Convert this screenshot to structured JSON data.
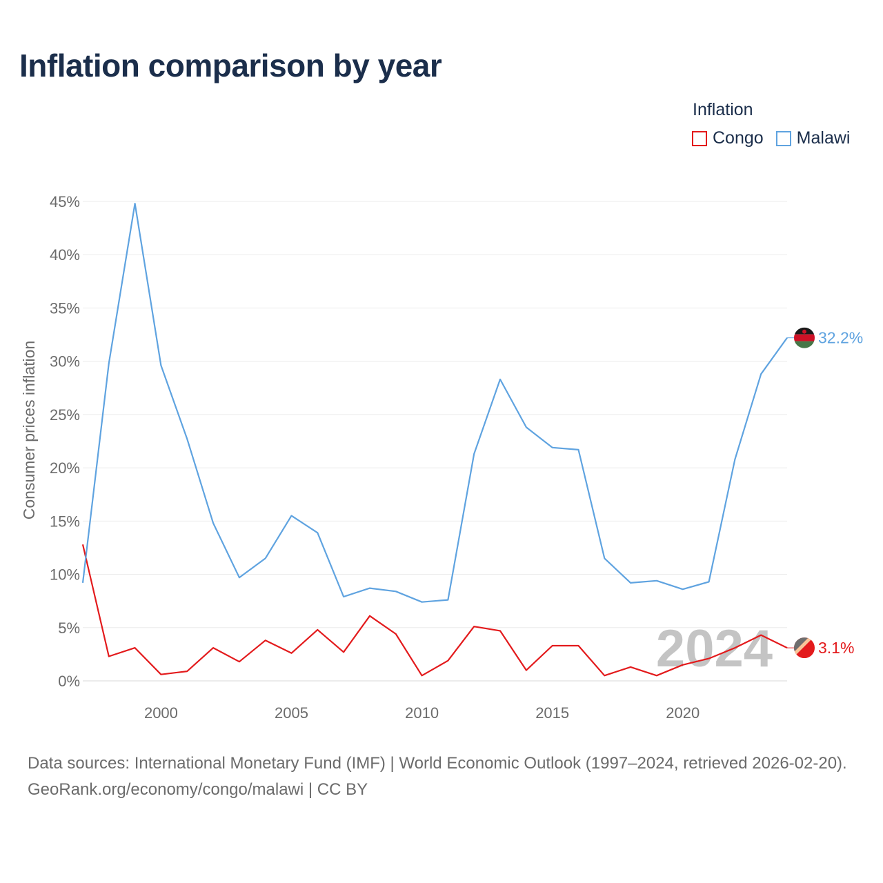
{
  "title": "Inflation comparison by year",
  "legend": {
    "title": "Inflation",
    "items": [
      {
        "name": "Congo",
        "color": "#e31a1c"
      },
      {
        "name": "Malawi",
        "color": "#5fa3e0"
      }
    ]
  },
  "year_watermark": "2024",
  "source": {
    "line1": "Data sources: International Monetary Fund (IMF) | World Economic Outlook (1997–2024, retrieved 2026-02-20).",
    "line2": "GeoRank.org/economy/congo/malawi | CC BY"
  },
  "chart_data": {
    "type": "line",
    "title": "Inflation comparison by year",
    "xlabel": "",
    "ylabel": "Consumer prices inflation",
    "xlim": [
      1997,
      2024
    ],
    "ylim": [
      0,
      45
    ],
    "x_ticks": [
      2000,
      2005,
      2010,
      2015,
      2020
    ],
    "x_tick_labels": [
      "2000",
      "2005",
      "2010",
      "2015",
      "2020"
    ],
    "y_ticks": [
      0,
      5,
      10,
      15,
      20,
      25,
      30,
      35,
      40,
      45
    ],
    "y_tick_labels": [
      "0%",
      "5%",
      "10%",
      "15%",
      "20%",
      "25%",
      "30%",
      "35%",
      "40%",
      "45%"
    ],
    "grid": true,
    "x": [
      1997,
      1998,
      1999,
      2000,
      2001,
      2002,
      2003,
      2004,
      2005,
      2006,
      2007,
      2008,
      2009,
      2010,
      2011,
      2012,
      2013,
      2014,
      2015,
      2016,
      2017,
      2018,
      2019,
      2020,
      2021,
      2022,
      2023,
      2024
    ],
    "series": [
      {
        "name": "Congo",
        "color": "#e31a1c",
        "end_label": "3.1%",
        "values": [
          12.8,
          2.3,
          3.1,
          0.6,
          0.9,
          3.1,
          1.8,
          3.8,
          2.6,
          4.8,
          2.7,
          6.1,
          4.4,
          0.5,
          1.9,
          5.1,
          4.7,
          1.0,
          3.3,
          3.3,
          0.5,
          1.3,
          0.5,
          1.5,
          2.1,
          3.1,
          4.3,
          3.1
        ]
      },
      {
        "name": "Malawi",
        "color": "#5fa3e0",
        "end_label": "32.2%",
        "values": [
          9.2,
          29.8,
          44.8,
          29.6,
          22.7,
          14.8,
          9.7,
          11.5,
          15.5,
          13.9,
          7.9,
          8.7,
          8.4,
          7.4,
          7.6,
          21.3,
          28.3,
          23.8,
          21.9,
          21.7,
          11.5,
          9.2,
          9.4,
          8.6,
          9.3,
          20.8,
          28.8,
          32.2
        ]
      }
    ]
  }
}
